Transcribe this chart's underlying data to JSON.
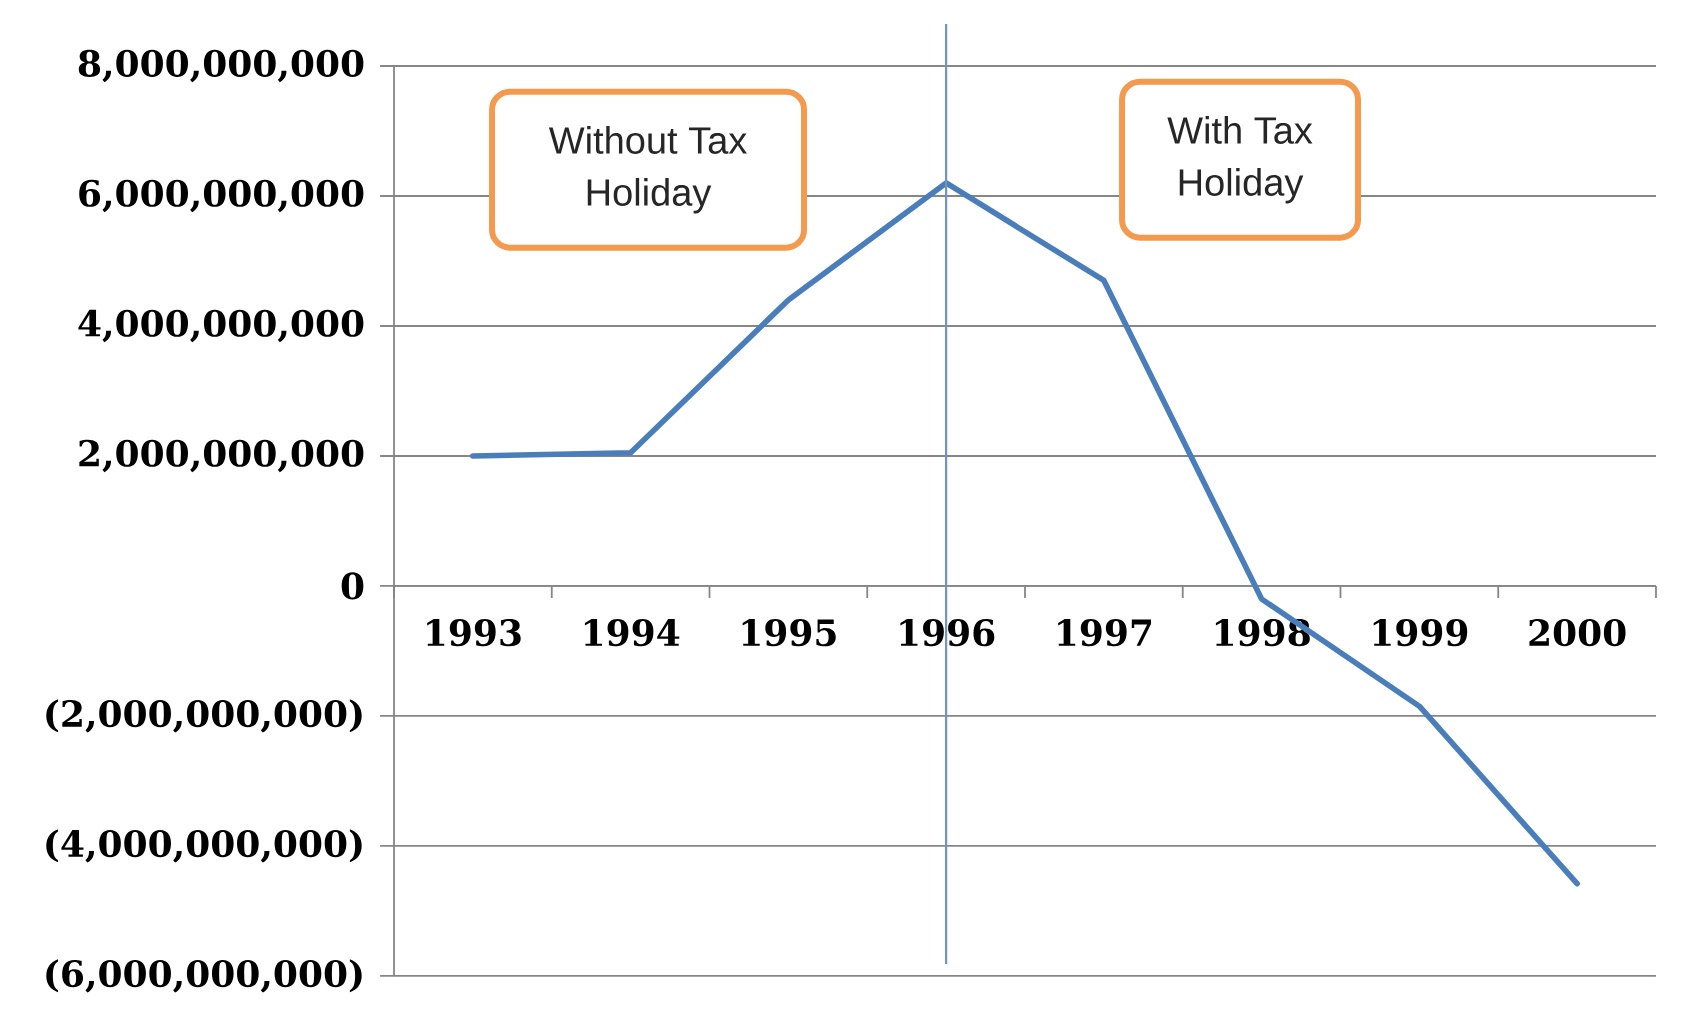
{
  "chart_data": {
    "type": "line",
    "x": [
      1993,
      1994,
      1995,
      1996,
      1997,
      1998,
      1999,
      2000
    ],
    "values": [
      2000000000,
      2050000000,
      4400000000,
      6200000000,
      4700000000,
      -200000000,
      -1850000000,
      -4580000000
    ],
    "color": "#4a7ebb",
    "xlim": [
      1992.5,
      2000.5
    ],
    "xticks": [
      1993,
      1994,
      1995,
      1996,
      1997,
      1998,
      1999,
      2000
    ],
    "ylim": [
      -6000000000,
      8000000000
    ],
    "yticks": [
      {
        "value": -6000000000,
        "label": "(6,000,000,000)"
      },
      {
        "value": -4000000000,
        "label": "(4,000,000,000)"
      },
      {
        "value": -2000000000,
        "label": "(2,000,000,000)"
      },
      0,
      {
        "value": 2000000000,
        "label": "2,000,000,000"
      },
      {
        "value": 4000000000,
        "label": "4,000,000,000"
      },
      {
        "value": 6000000000,
        "label": "6,000,000,000"
      },
      {
        "value": 8000000000,
        "label": "8,000,000,000"
      }
    ],
    "grid": "y",
    "ref_lines": [
      {
        "axis": "x",
        "value": 1996,
        "color": "#6f95c0"
      }
    ],
    "annotations": [
      "Without Tax Holiday",
      "With Tax Holiday"
    ]
  }
}
